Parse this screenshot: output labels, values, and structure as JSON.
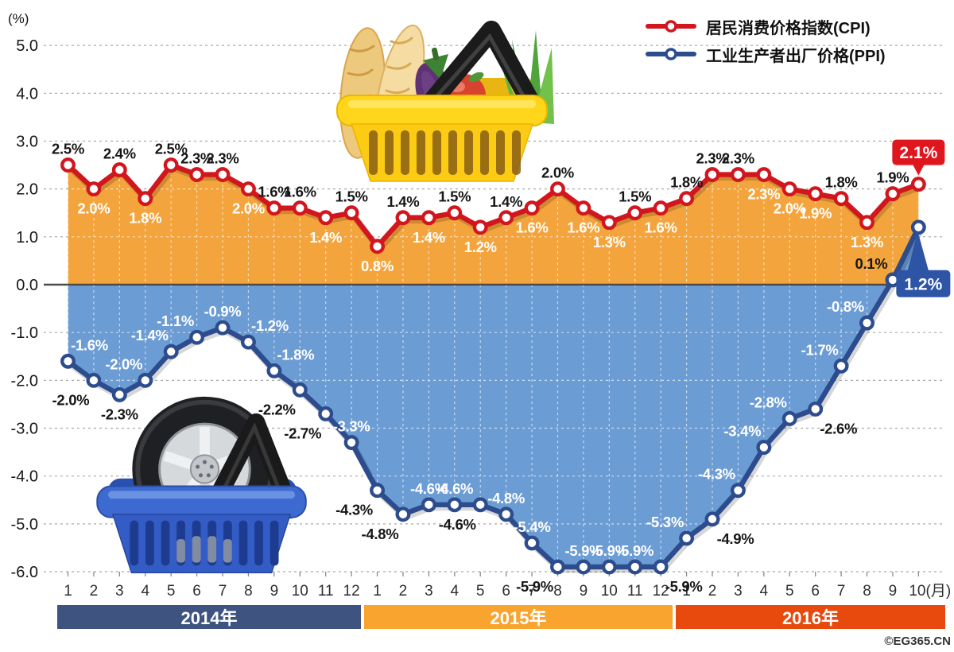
{
  "meta": {
    "percent_label": "(%)",
    "month_suffix": "(月)",
    "watermark": "©EG365.CN"
  },
  "legend": [
    {
      "label": "居民消费价格指数(CPI)",
      "color": "#D2161E"
    },
    {
      "label": "工业生产者出厂价格(PPI)",
      "color": "#2C4C8E"
    }
  ],
  "years": [
    {
      "label": "2014年",
      "color": "#3E5380",
      "months": 12
    },
    {
      "label": "2015年",
      "color": "#F9A42E",
      "months": 12
    },
    {
      "label": "2016年",
      "color": "#E8490D",
      "months": 10
    }
  ],
  "illustrations": [
    {
      "name": "grocery-basket",
      "desc": "yellow shopping basket with bread, eggplant, apple, banana, scallions"
    },
    {
      "name": "tire-basket",
      "desc": "blue shopping basket with car wheel"
    }
  ],
  "chart_data": {
    "type": "line",
    "months": [
      "1",
      "2",
      "3",
      "4",
      "5",
      "6",
      "7",
      "8",
      "9",
      "10",
      "11",
      "12",
      "1",
      "2",
      "3",
      "4",
      "5",
      "6",
      "7",
      "8",
      "9",
      "10",
      "11",
      "12",
      "1",
      "2",
      "3",
      "4",
      "5",
      "6",
      "7",
      "8",
      "9",
      "10"
    ],
    "yticks": [
      5,
      4,
      3,
      2,
      1,
      0,
      -1,
      -2,
      -3,
      -4,
      -5,
      -6
    ],
    "ylim": [
      -6,
      5
    ],
    "grid": "dashed",
    "legend_position": "top-right",
    "series": [
      {
        "name": "CPI",
        "color": "#D2161E",
        "fill": "#F4A43C",
        "values": [
          2.5,
          2.0,
          2.4,
          1.8,
          2.5,
          2.3,
          2.3,
          2.0,
          1.6,
          1.6,
          1.4,
          1.5,
          0.8,
          1.4,
          1.4,
          1.5,
          1.2,
          1.4,
          1.6,
          2.0,
          1.6,
          1.3,
          1.5,
          1.6,
          1.8,
          2.3,
          2.3,
          2.3,
          2.0,
          1.9,
          1.8,
          1.3,
          1.9,
          2.1
        ],
        "label_pos": [
          "a",
          "b",
          "a",
          "b",
          "a",
          "a",
          "a",
          "b",
          "a",
          "a",
          "b",
          "a",
          "b",
          "a",
          "b",
          "a",
          "b",
          "a",
          "b",
          "a",
          "b",
          "b",
          "a",
          "b",
          "a",
          "a",
          "a",
          "b",
          "b",
          "b",
          "a",
          "b",
          "a",
          "C"
        ],
        "label_dark_overrides": []
      },
      {
        "name": "PPI",
        "color": "#2C4C8E",
        "fill": "#6C9CD4",
        "values": [
          -1.6,
          -2.0,
          -2.3,
          -2.0,
          -1.4,
          -1.1,
          -0.9,
          -1.2,
          -1.8,
          -2.2,
          -2.7,
          -3.3,
          -4.3,
          -4.8,
          -4.6,
          -4.6,
          -4.6,
          -4.8,
          -5.4,
          -5.9,
          -5.9,
          -5.9,
          -5.9,
          -5.9,
          -5.3,
          -4.9,
          -4.3,
          -3.4,
          -2.8,
          -2.6,
          -1.7,
          -0.8,
          0.1,
          1.2
        ],
        "label_pos": [
          "ar",
          "bl",
          "b",
          "al",
          "al",
          "al",
          "a",
          "ar",
          "ar",
          "bl",
          "bl",
          "a",
          "bl",
          "bl",
          "a",
          "a",
          "bl",
          "a",
          "a",
          "bl",
          "a",
          "a",
          "a",
          "br",
          "al",
          "br",
          "al",
          "al",
          "al",
          "br",
          "al",
          "al",
          "al",
          "C"
        ],
        "label_dark_overrides": [
          32
        ]
      }
    ],
    "callouts": [
      {
        "series": "CPI",
        "index": 33,
        "text": "2.1%",
        "fill": "#E0161F",
        "shape": "down"
      },
      {
        "series": "PPI",
        "index": 33,
        "text": "1.2%",
        "fill": "#2E54A6",
        "shape": "up-left"
      }
    ]
  }
}
